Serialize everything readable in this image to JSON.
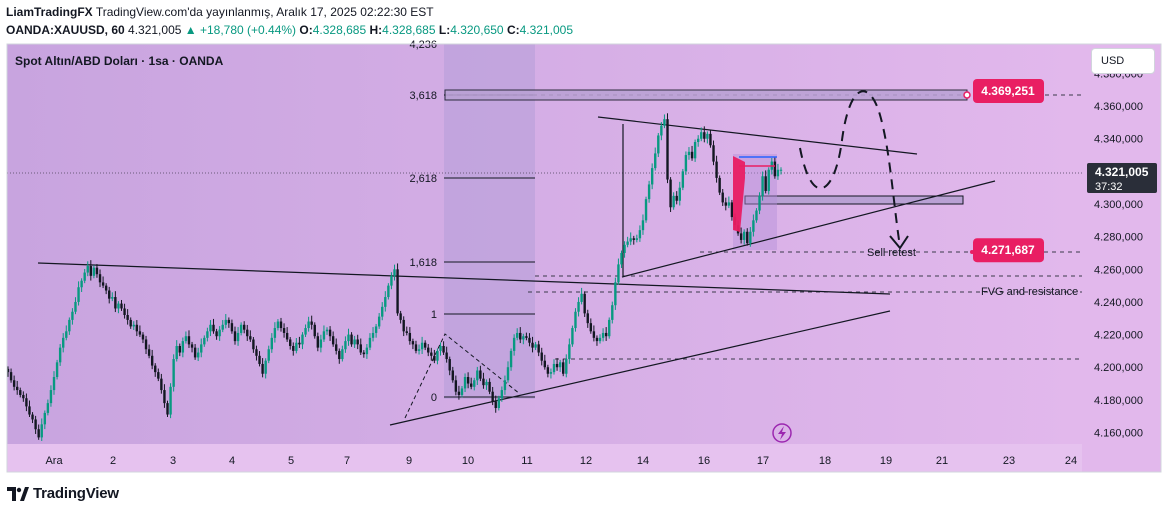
{
  "header": {
    "line1_author": "LiamTradingFX",
    "line1_rest": "TradingView.com'da yayınlanmış, Aralık 17, 2025 02:22:30 EST",
    "symbol": "OANDA:XAUUSD, 60",
    "last": "4.321,005",
    "change": "▲ +18,780 (+0.44%)",
    "o_label": "O:",
    "o_val": "4.328,685",
    "h_label": "H:",
    "h_val": "4.328,685",
    "l_label": "L:",
    "l_val": "4.320,650",
    "c_label": "C:",
    "c_val": "4.321,005"
  },
  "chart_title": "Spot Altın/ABD Doları · 1sa · OANDA",
  "currency_button": "USD",
  "footer": {
    "logo_text": "TradingView"
  },
  "colors": {
    "background_left": "#c8a4df",
    "background_right": "#e2b8ec",
    "candle_up": "#089981",
    "candle_down": "#131722",
    "price_tag": "#e91e63",
    "last_price_tag": "#2a2e39",
    "axis_text": "#131722"
  },
  "chart_data": {
    "type": "candlestick",
    "title": "Spot Altın/ABD Doları · 1sa · OANDA",
    "ylim": [
      4150,
      4385
    ],
    "x_ticks": [
      "Ara",
      "2",
      "3",
      "4",
      "5",
      "7",
      "9",
      "10",
      "11",
      "12",
      "14",
      "16",
      "17",
      "18",
      "19",
      "21",
      "23",
      "24"
    ],
    "y_ticks": [
      "4.160,000",
      "4.180,000",
      "4.200,000",
      "4.220,000",
      "4.240,000",
      "4.260,000",
      "4.280,000",
      "4.300,000",
      "4.320,000",
      "4.340,000",
      "4.360,000",
      "4.380,000"
    ],
    "last_price": {
      "price": "4.321,005",
      "countdown": "37:32"
    },
    "fib_levels": [
      {
        "label": "4,236"
      },
      {
        "label": "3,618"
      },
      {
        "label": "2,618"
      },
      {
        "label": "1,618"
      },
      {
        "label": "1"
      },
      {
        "label": "0"
      }
    ],
    "price_tags": [
      {
        "label": "4.369,251",
        "value": 4369.251
      },
      {
        "label": "4.271,687",
        "value": 4271.687
      }
    ],
    "annotations": [
      "Sell retest",
      "FVG and resistance"
    ],
    "candles_close": [
      4197,
      4192,
      4188,
      4186,
      4183,
      4181,
      4176,
      4171,
      4168,
      4162,
      4157,
      4165,
      4172,
      4178,
      4186,
      4194,
      4203,
      4212,
      4218,
      4222,
      4229,
      4234,
      4240,
      4249,
      4253,
      4258,
      4262,
      4256,
      4261,
      4257,
      4252,
      4250,
      4247,
      4242,
      4243,
      4236,
      4239,
      4236,
      4232,
      4229,
      4225,
      4226,
      4222,
      4220,
      4217,
      4211,
      4207,
      4201,
      4197,
      4193,
      4186,
      4178,
      4171,
      4188,
      4205,
      4213,
      4209,
      4216,
      4219,
      4214,
      4212,
      4206,
      4209,
      4214,
      4218,
      4222,
      4226,
      4222,
      4219,
      4223,
      4226,
      4229,
      4227,
      4222,
      4216,
      4221,
      4226,
      4223,
      4219,
      4217,
      4211,
      4207,
      4202,
      4196,
      4204,
      4211,
      4218,
      4224,
      4228,
      4224,
      4221,
      4217,
      4213,
      4210,
      4215,
      4214,
      4220,
      4224,
      4228,
      4226,
      4219,
      4212,
      4217,
      4222,
      4223,
      4219,
      4214,
      4210,
      4205,
      4211,
      4216,
      4220,
      4214,
      4217,
      4214,
      4209,
      4208,
      4212,
      4218,
      4221,
      4225,
      4231,
      4237,
      4243,
      4250,
      4256,
      4260,
      4233,
      4229,
      4222,
      4221,
      4216,
      4214,
      4210,
      4211,
      4215,
      4212,
      4209,
      4207,
      4204,
      4210,
      4213,
      4209,
      4205,
      4198,
      4192,
      4185,
      4183,
      4187,
      4194,
      4190,
      4188,
      4192,
      4198,
      4193,
      4189,
      4191,
      4185,
      4179,
      4175,
      4181,
      4186,
      4192,
      4200,
      4210,
      4218,
      4221,
      4217,
      4219,
      4218,
      4215,
      4212,
      4214,
      4209,
      4204,
      4200,
      4196,
      4197,
      4202,
      4200,
      4203,
      4196,
      4205,
      4214,
      4224,
      4234,
      4240,
      4245,
      4233,
      4227,
      4222,
      4218,
      4216,
      4218,
      4221,
      4219,
      4229,
      4238,
      4252,
      4263,
      4270,
      4275,
      4277,
      4279,
      4278,
      4279,
      4284,
      4290,
      4303,
      4312,
      4322,
      4331,
      4342,
      4348,
      4352,
      4315,
      4298,
      4305,
      4302,
      4310,
      4320,
      4330,
      4332,
      4328,
      4338,
      4340,
      4344,
      4340,
      4343,
      4336,
      4326,
      4316,
      4307,
      4301,
      4299,
      4301,
      4292,
      4287,
      4282,
      4278,
      4283,
      4276,
      4283,
      4290,
      4296,
      4305,
      4317,
      4308,
      4321,
      4326,
      4317,
      4321,
      4321
    ]
  }
}
